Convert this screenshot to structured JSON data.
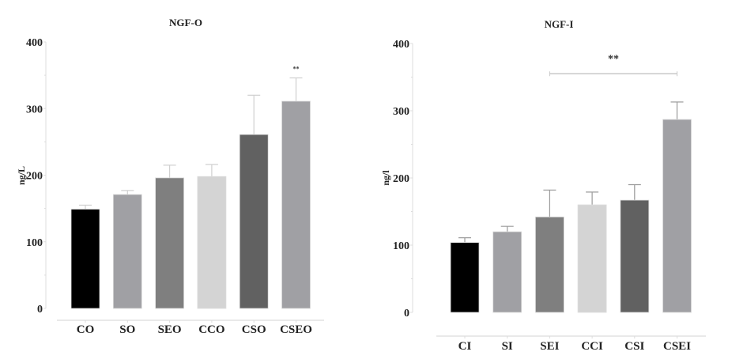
{
  "chart_data": [
    {
      "type": "bar",
      "title": "NGF-O",
      "xlabel": "",
      "ylabel": "ng/L",
      "ylim": [
        0,
        400
      ],
      "yticks": [
        0,
        100,
        200,
        300,
        400
      ],
      "grid": false,
      "categories": [
        "CO",
        "SO",
        "SEO",
        "CCO",
        "CSO",
        "CSEO"
      ],
      "values": [
        149,
        171,
        196,
        198,
        261,
        311
      ],
      "error_upper": [
        155,
        177,
        215,
        216,
        320,
        346
      ],
      "bar_colors": [
        "#000000",
        "#a0a0a4",
        "#7f7f7f",
        "#d4d4d4",
        "#616161",
        "#a0a0a4"
      ],
      "annotations": [
        {
          "text": "**",
          "category": "CSEO"
        }
      ]
    },
    {
      "type": "bar",
      "title": "NGF-I",
      "xlabel": "",
      "ylabel": "ng/l",
      "ylim": [
        0,
        400
      ],
      "yticks": [
        0,
        100,
        200,
        300,
        400
      ],
      "grid": false,
      "categories": [
        "CI",
        "SI",
        "SEI",
        "CCI",
        "CSI",
        "CSEI"
      ],
      "values": [
        104,
        120,
        142,
        160,
        167,
        287
      ],
      "error_upper": [
        111,
        128,
        182,
        179,
        190,
        313
      ],
      "bar_colors": [
        "#000000",
        "#a0a0a4",
        "#7f7f7f",
        "#d4d4d4",
        "#616161",
        "#a0a0a4"
      ],
      "annotations": [
        {
          "text": "**",
          "bracket_from": "SEI",
          "bracket_to": "CSEI",
          "level": 355
        }
      ]
    }
  ]
}
